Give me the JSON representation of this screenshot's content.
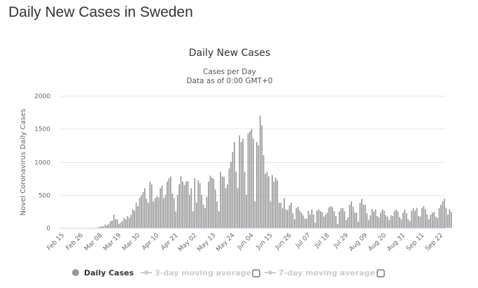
{
  "page": {
    "title": "Daily New Cases in Sweden"
  },
  "chart_data": {
    "type": "bar",
    "title": "Daily New Cases",
    "subtitle_lines": [
      "Cases per Day",
      "Data as of 0:00 GMT+0"
    ],
    "xlabel": "",
    "ylabel": "Novel Coronavirus Daily Cases",
    "ylim": [
      0,
      2000
    ],
    "yticks": [
      0,
      500,
      1000,
      1500,
      2000
    ],
    "grid": true,
    "start_date": "Feb 15",
    "xtick_labels": [
      "Feb 15",
      "Feb 26",
      "Mar 08",
      "Mar 19",
      "Mar 30",
      "Apr 10",
      "Apr 21",
      "May 02",
      "May 13",
      "May 24",
      "Jun 04",
      "Jun 15",
      "Jun 26",
      "Jul 07",
      "Jul 18",
      "Jul 29",
      "Aug 09",
      "Aug 20",
      "Aug 31",
      "Sep 11",
      "Sep 22"
    ],
    "xtick_interval_days": 11,
    "bar_color": "#999999",
    "values": [
      0,
      0,
      0,
      0,
      0,
      0,
      0,
      0,
      0,
      0,
      0,
      0,
      0,
      0,
      1,
      0,
      0,
      0,
      5,
      0,
      2,
      10,
      15,
      30,
      20,
      50,
      40,
      60,
      100,
      110,
      200,
      130,
      130,
      60,
      80,
      100,
      150,
      130,
      180,
      150,
      200,
      280,
      260,
      380,
      330,
      450,
      490,
      540,
      600,
      440,
      380,
      700,
      660,
      400,
      450,
      480,
      460,
      600,
      640,
      450,
      500,
      700,
      750,
      780,
      520,
      450,
      250,
      500,
      660,
      780,
      700,
      650,
      700,
      710,
      500,
      600,
      250,
      750,
      380,
      720,
      680,
      500,
      350,
      300,
      470,
      700,
      790,
      760,
      740,
      580,
      400,
      250,
      850,
      780,
      770,
      600,
      660,
      900,
      1000,
      1150,
      1300,
      850,
      600,
      1400,
      1300,
      1350,
      850,
      500,
      1430,
      1460,
      1500,
      1350,
      400,
      1300,
      1250,
      1700,
      1550,
      1100,
      820,
      850,
      780,
      400,
      800,
      700,
      760,
      720,
      380,
      380,
      300,
      450,
      280,
      270,
      340,
      380,
      220,
      130,
      300,
      320,
      260,
      230,
      190,
      140,
      140,
      260,
      200,
      280,
      200,
      80,
      260,
      280,
      250,
      240,
      170,
      200,
      230,
      310,
      330,
      310,
      250,
      180,
      60,
      250,
      300,
      300,
      250,
      120,
      160,
      350,
      400,
      320,
      230,
      230,
      90,
      380,
      440,
      350,
      350,
      220,
      120,
      190,
      290,
      250,
      280,
      180,
      160,
      230,
      280,
      260,
      190,
      170,
      120,
      190,
      180,
      250,
      280,
      250,
      160,
      130,
      230,
      280,
      220,
      130,
      100,
      260,
      300,
      260,
      300,
      180,
      170,
      300,
      330,
      280,
      200,
      130,
      200,
      230,
      240,
      170,
      150,
      300,
      350,
      400,
      440,
      300,
      200,
      280,
      240
    ]
  },
  "legend": {
    "items": [
      {
        "label": "Daily Cases",
        "active": true
      },
      {
        "label": "3-day moving average",
        "active": false
      },
      {
        "label": "7-day moving average",
        "active": false
      }
    ]
  }
}
